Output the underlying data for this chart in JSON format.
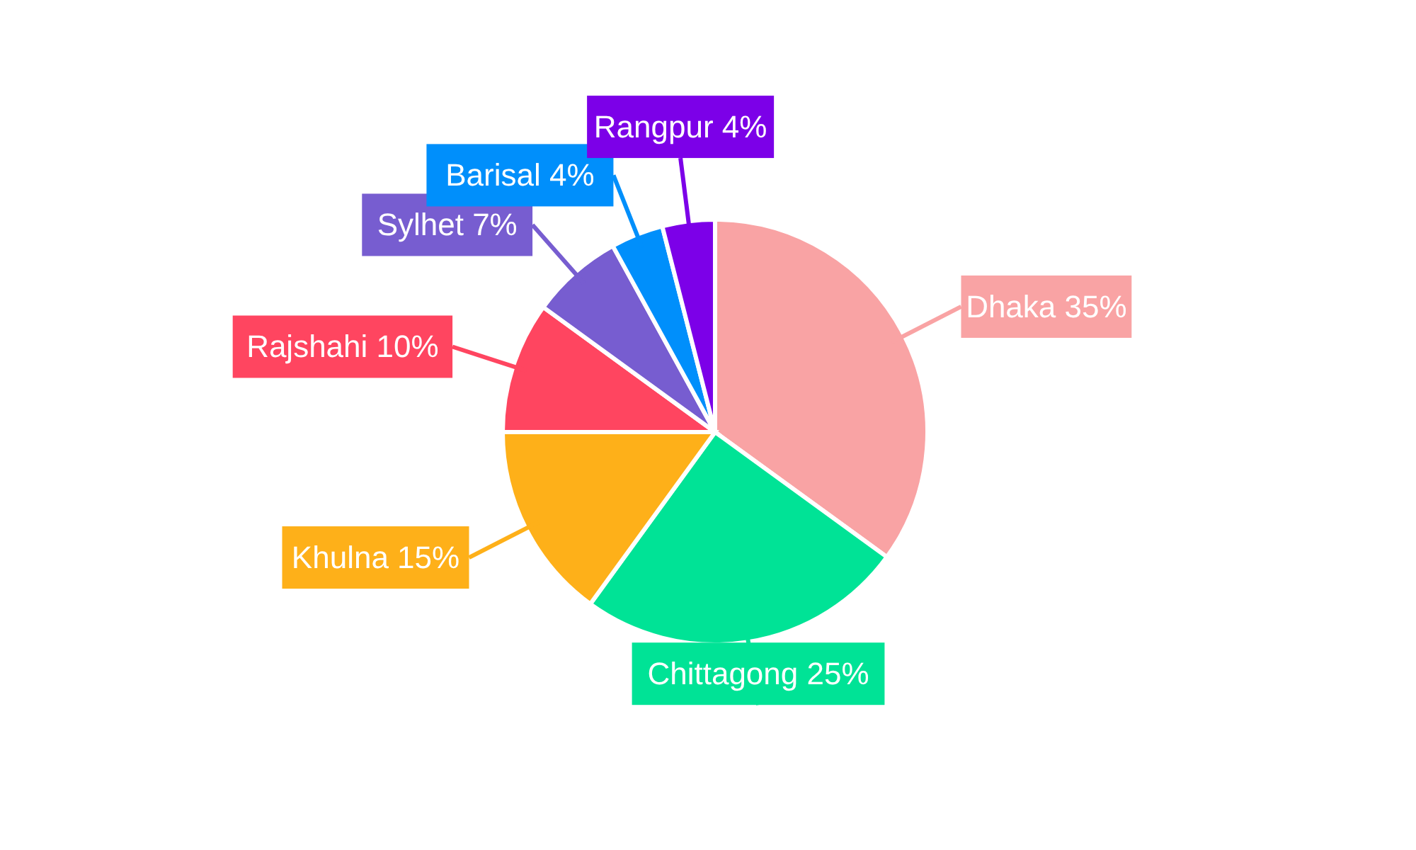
{
  "chart_data": {
    "type": "pie",
    "categories": [
      "Dhaka",
      "Chittagong",
      "Khulna",
      "Rajshahi",
      "Sylhet",
      "Barisal",
      "Rangpur"
    ],
    "values": [
      35,
      25,
      15,
      10,
      7,
      4,
      4
    ],
    "value_labels": [
      "35%",
      "25%",
      "15%",
      "10%",
      "7%",
      "4%",
      "4%"
    ],
    "colors": [
      "#f9a3a4",
      "#00e396",
      "#feb019",
      "#ff4560",
      "#775dd0",
      "#008ffb",
      "#7c00e8"
    ],
    "legend": false
  }
}
